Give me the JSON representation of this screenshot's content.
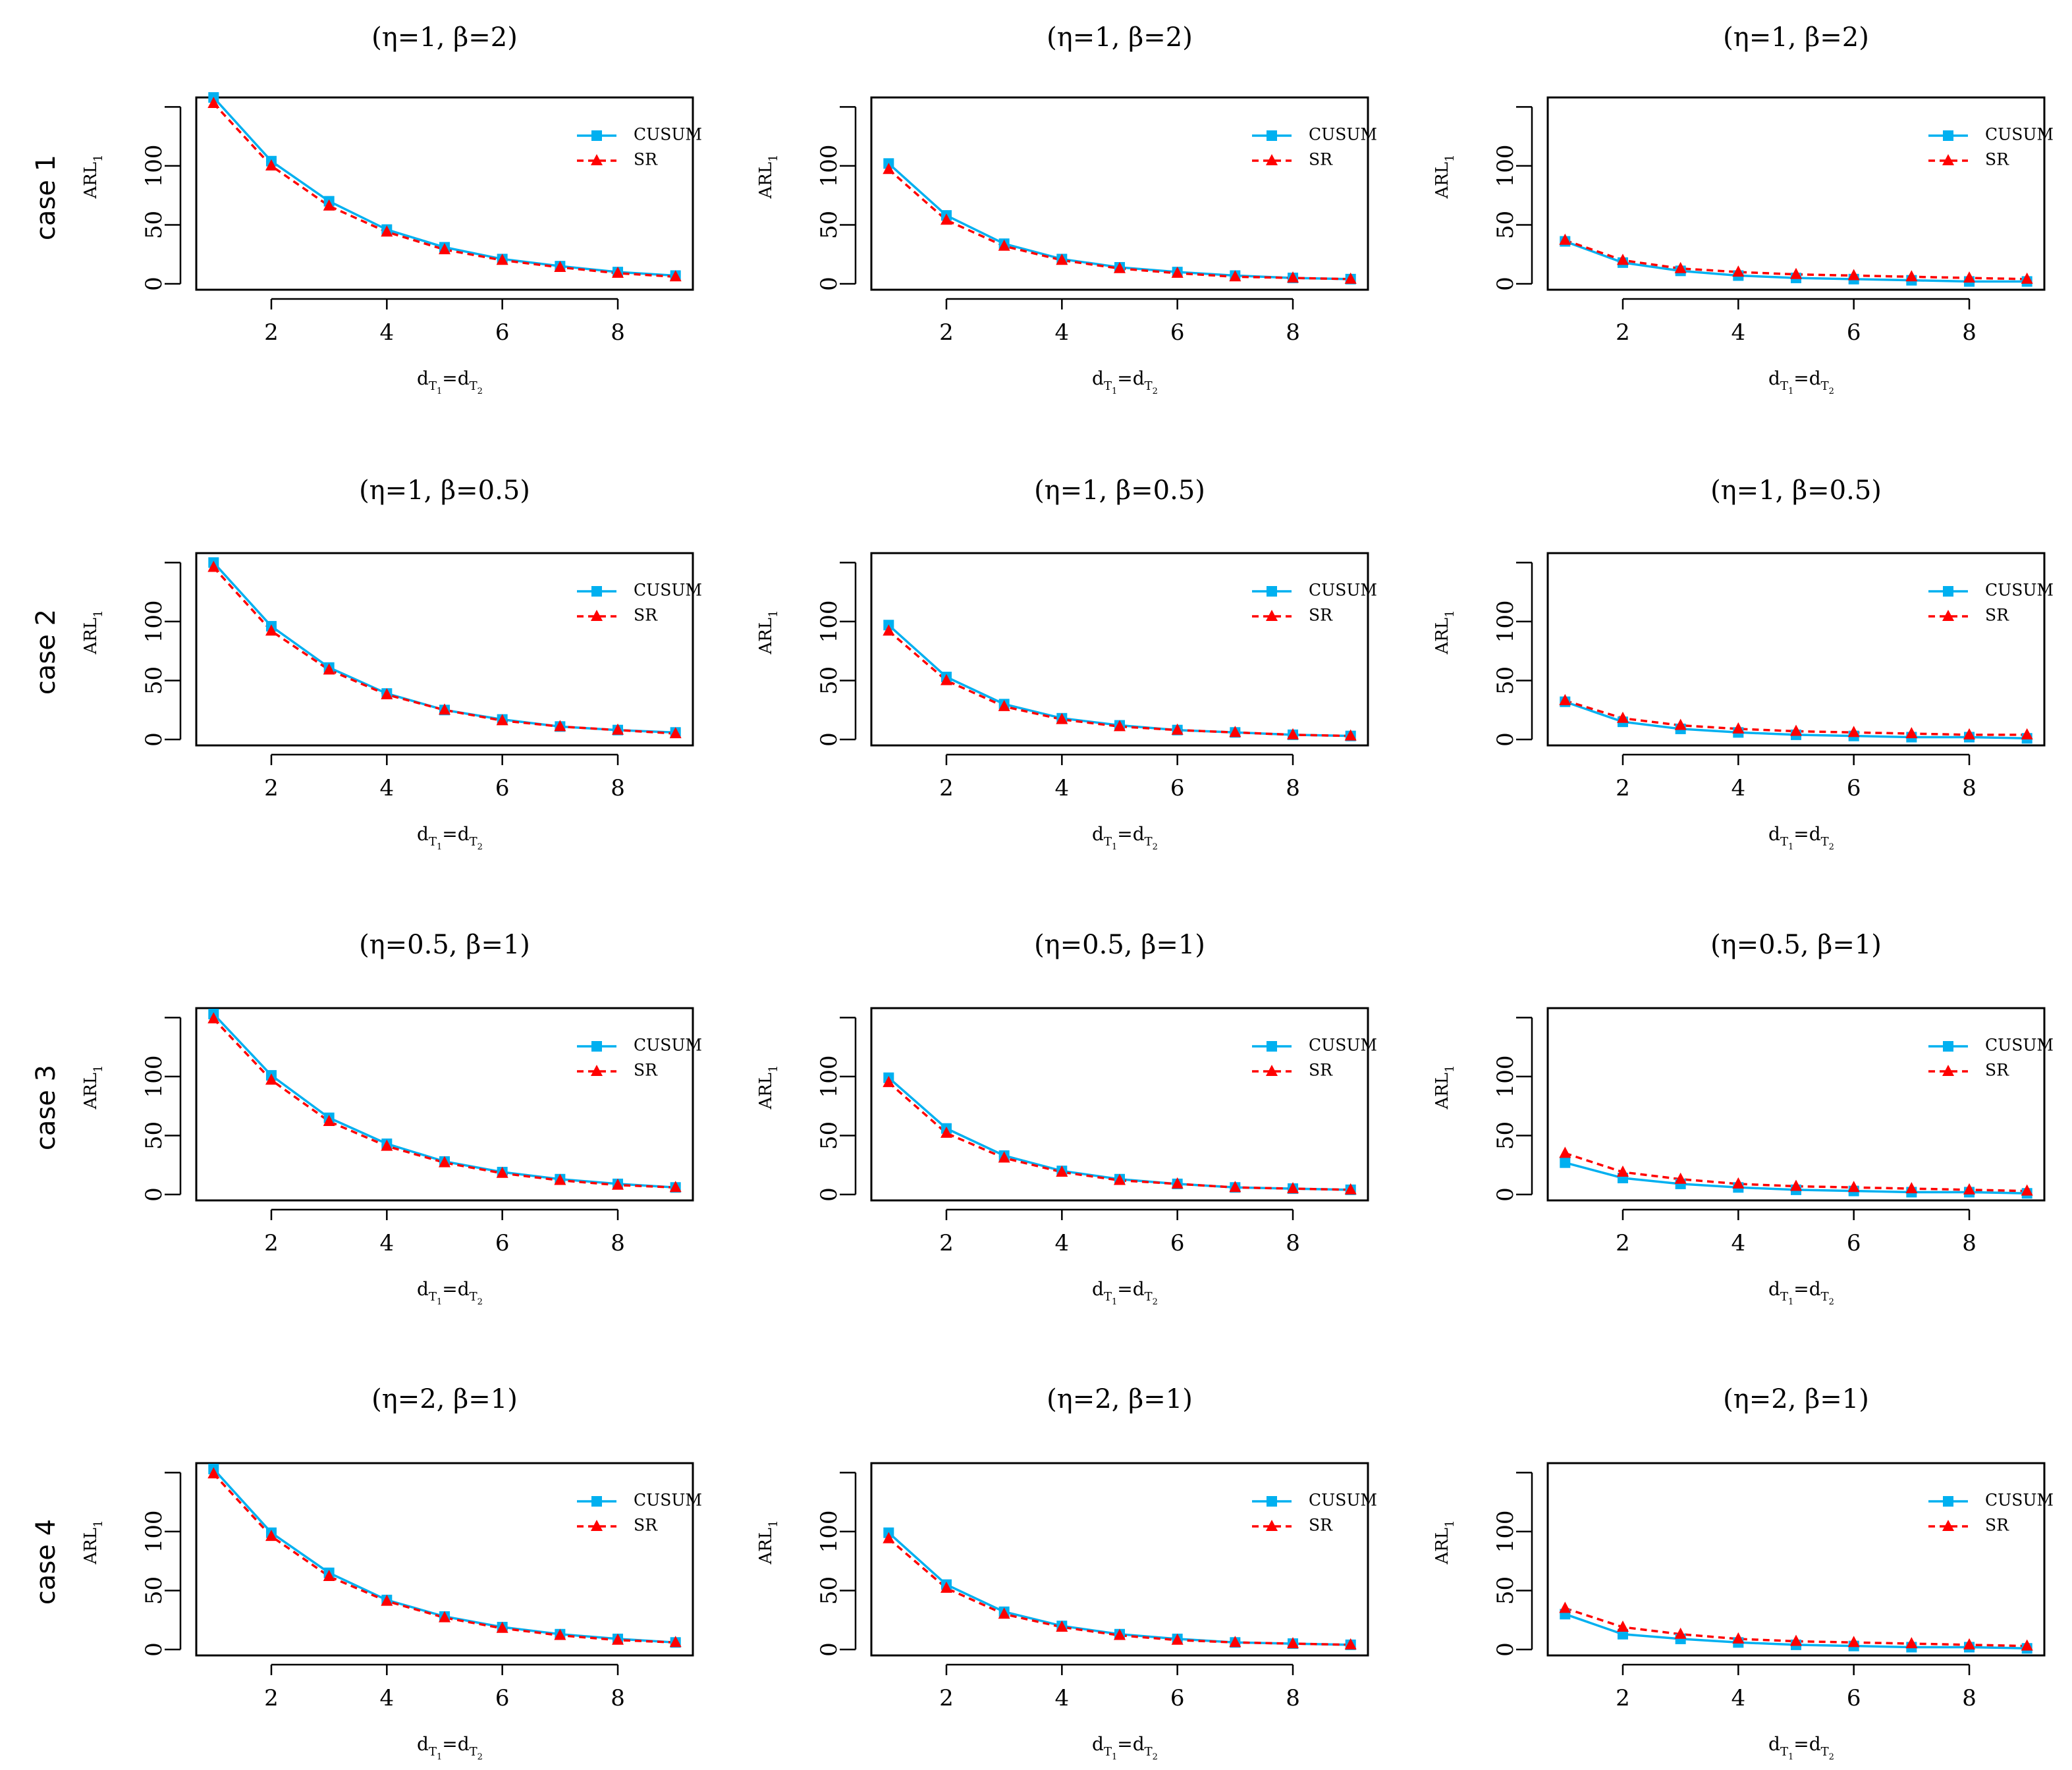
{
  "figure": {
    "row_labels": [
      "case 1",
      "case 2",
      "case 3",
      "case 4"
    ],
    "column_titles": [
      "(η=1,  β=2)",
      "(η=1,  β=0.5)",
      "(η=0.5,  β=1)",
      "(η=2,  β=1)"
    ],
    "ylabel_main": "ARL",
    "ylabel_sub": "1",
    "xlabel_parts": [
      "d",
      "T",
      "1",
      "=d",
      "T",
      "2"
    ],
    "legend": [
      "CUSUM",
      "SR"
    ],
    "x_ticks": [
      "2",
      "4",
      "6",
      "8"
    ],
    "y_ticks": [
      "0",
      "50",
      "100"
    ]
  },
  "colors": {
    "cusum": "#00b0f0",
    "sr": "#ff0000",
    "axis": "#000000"
  },
  "chart_data": [
    {
      "type": "line",
      "title": "(η=1,  β=2)",
      "xlabel": "dT1=dT2",
      "ylabel": "ARL1",
      "xlim": [
        0.7,
        9.3
      ],
      "ylim": [
        -5,
        158
      ],
      "x": [
        1,
        2,
        3,
        4,
        5,
        6,
        7,
        8,
        9
      ],
      "series": [
        {
          "name": "CUSUM",
          "values": [
            158,
            104,
            70,
            46,
            31,
            21,
            15,
            10,
            7
          ]
        },
        {
          "name": "SR",
          "values": [
            153,
            100,
            66,
            44,
            29,
            20,
            14,
            9,
            6
          ]
        }
      ]
    },
    {
      "type": "line",
      "title": "(η=1,  β=2)",
      "xlabel": "dT1=dT2",
      "ylabel": "ARL1",
      "xlim": [
        0.7,
        9.3
      ],
      "ylim": [
        -5,
        158
      ],
      "x": [
        1,
        2,
        3,
        4,
        5,
        6,
        7,
        8,
        9
      ],
      "series": [
        {
          "name": "CUSUM",
          "values": [
            102,
            58,
            34,
            21,
            14,
            10,
            7,
            5,
            4
          ]
        },
        {
          "name": "SR",
          "values": [
            97,
            54,
            32,
            20,
            13,
            9,
            6,
            5,
            4
          ]
        }
      ]
    },
    {
      "type": "line",
      "title": "(η=1,  β=2)",
      "xlabel": "dT1=dT2",
      "ylabel": "ARL1",
      "xlim": [
        0.7,
        9.3
      ],
      "ylim": [
        -5,
        158
      ],
      "x": [
        1,
        2,
        3,
        4,
        5,
        6,
        7,
        8,
        9
      ],
      "series": [
        {
          "name": "CUSUM",
          "values": [
            36,
            18,
            11,
            7,
            5,
            4,
            3,
            2,
            2
          ]
        },
        {
          "name": "SR",
          "values": [
            37,
            20,
            13,
            10,
            8,
            7,
            6,
            5,
            4
          ]
        }
      ]
    },
    {
      "type": "line",
      "title": "(η=1,  β=0.5)",
      "xlabel": "dT1=dT2",
      "ylabel": "ARL1",
      "xlim": [
        0.7,
        9.3
      ],
      "ylim": [
        -5,
        158
      ],
      "x": [
        1,
        2,
        3,
        4,
        5,
        6,
        7,
        8,
        9
      ],
      "series": [
        {
          "name": "CUSUM",
          "values": [
            150,
            96,
            61,
            39,
            25,
            17,
            11,
            8,
            6
          ]
        },
        {
          "name": "SR",
          "values": [
            146,
            92,
            59,
            38,
            25,
            16,
            11,
            8,
            5
          ]
        }
      ]
    },
    {
      "type": "line",
      "title": "(η=1,  β=0.5)",
      "xlabel": "dT1=dT2",
      "ylabel": "ARL1",
      "xlim": [
        0.7,
        9.3
      ],
      "ylim": [
        -5,
        158
      ],
      "x": [
        1,
        2,
        3,
        4,
        5,
        6,
        7,
        8,
        9
      ],
      "series": [
        {
          "name": "CUSUM",
          "values": [
            97,
            53,
            30,
            18,
            12,
            8,
            6,
            4,
            3
          ]
        },
        {
          "name": "SR",
          "values": [
            92,
            50,
            28,
            17,
            11,
            8,
            6,
            4,
            3
          ]
        }
      ]
    },
    {
      "type": "line",
      "title": "(η=1,  β=0.5)",
      "xlabel": "dT1=dT2",
      "ylabel": "ARL1",
      "xlim": [
        0.7,
        9.3
      ],
      "ylim": [
        -5,
        158
      ],
      "x": [
        1,
        2,
        3,
        4,
        5,
        6,
        7,
        8,
        9
      ],
      "series": [
        {
          "name": "CUSUM",
          "values": [
            32,
            15,
            9,
            6,
            4,
            3,
            2,
            2,
            1
          ]
        },
        {
          "name": "SR",
          "values": [
            33,
            18,
            12,
            9,
            7,
            6,
            5,
            4,
            4
          ]
        }
      ]
    },
    {
      "type": "line",
      "title": "(η=0.5,  β=1)",
      "xlabel": "dT1=dT2",
      "ylabel": "ARL1",
      "xlim": [
        0.7,
        9.3
      ],
      "ylim": [
        -5,
        158
      ],
      "x": [
        1,
        2,
        3,
        4,
        5,
        6,
        7,
        8,
        9
      ],
      "series": [
        {
          "name": "CUSUM",
          "values": [
            153,
            101,
            65,
            43,
            28,
            19,
            13,
            9,
            6
          ]
        },
        {
          "name": "SR",
          "values": [
            149,
            97,
            62,
            41,
            27,
            18,
            12,
            8,
            6
          ]
        }
      ]
    },
    {
      "type": "line",
      "title": "(η=0.5,  β=1)",
      "xlabel": "dT1=dT2",
      "ylabel": "ARL1",
      "xlim": [
        0.7,
        9.3
      ],
      "ylim": [
        -5,
        158
      ],
      "x": [
        1,
        2,
        3,
        4,
        5,
        6,
        7,
        8,
        9
      ],
      "series": [
        {
          "name": "CUSUM",
          "values": [
            99,
            56,
            33,
            20,
            13,
            9,
            6,
            5,
            4
          ]
        },
        {
          "name": "SR",
          "values": [
            95,
            52,
            31,
            19,
            12,
            9,
            6,
            5,
            4
          ]
        }
      ]
    },
    {
      "type": "line",
      "title": "(η=0.5,  β=1)",
      "xlabel": "dT1=dT2",
      "ylabel": "ARL1",
      "xlim": [
        0.7,
        9.3
      ],
      "ylim": [
        -5,
        158
      ],
      "x": [
        1,
        2,
        3,
        4,
        5,
        6,
        7,
        8,
        9
      ],
      "series": [
        {
          "name": "CUSUM",
          "values": [
            27,
            14,
            9,
            6,
            4,
            3,
            2,
            2,
            1
          ]
        },
        {
          "name": "SR",
          "values": [
            35,
            19,
            13,
            9,
            7,
            6,
            5,
            4,
            3
          ]
        }
      ]
    },
    {
      "type": "line",
      "title": "(η=2,  β=1)",
      "xlabel": "dT1=dT2",
      "ylabel": "ARL1",
      "xlim": [
        0.7,
        9.3
      ],
      "ylim": [
        -5,
        158
      ],
      "x": [
        1,
        2,
        3,
        4,
        5,
        6,
        7,
        8,
        9
      ],
      "series": [
        {
          "name": "CUSUM",
          "values": [
            153,
            99,
            65,
            42,
            28,
            19,
            13,
            9,
            6
          ]
        },
        {
          "name": "SR",
          "values": [
            149,
            96,
            62,
            41,
            27,
            18,
            12,
            8,
            6
          ]
        }
      ]
    },
    {
      "type": "line",
      "title": "(η=2,  β=1)",
      "xlabel": "dT1=dT2",
      "ylabel": "ARL1",
      "xlim": [
        0.7,
        9.3
      ],
      "ylim": [
        -5,
        158
      ],
      "x": [
        1,
        2,
        3,
        4,
        5,
        6,
        7,
        8,
        9
      ],
      "series": [
        {
          "name": "CUSUM",
          "values": [
            99,
            55,
            32,
            20,
            13,
            9,
            6,
            5,
            4
          ]
        },
        {
          "name": "SR",
          "values": [
            94,
            52,
            30,
            19,
            12,
            8,
            6,
            5,
            4
          ]
        }
      ]
    },
    {
      "type": "line",
      "title": "(η=2,  β=1)",
      "xlabel": "dT1=dT2",
      "ylabel": "ARL1",
      "xlim": [
        0.7,
        9.3
      ],
      "ylim": [
        -5,
        158
      ],
      "x": [
        1,
        2,
        3,
        4,
        5,
        6,
        7,
        8,
        9
      ],
      "series": [
        {
          "name": "CUSUM",
          "values": [
            30,
            13,
            9,
            6,
            4,
            3,
            2,
            2,
            1
          ]
        },
        {
          "name": "SR",
          "values": [
            35,
            19,
            13,
            9,
            7,
            6,
            5,
            4,
            3
          ]
        }
      ]
    }
  ]
}
